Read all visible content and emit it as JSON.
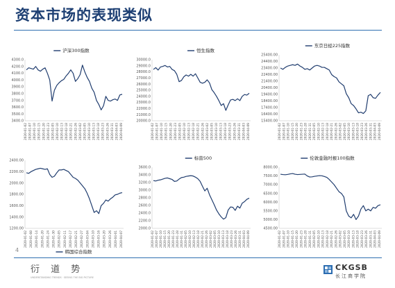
{
  "slide": {
    "title": "资本市场的表现类似",
    "page_number": "4",
    "logo_left": {
      "mark": "衍 道 势",
      "subtitle": "UNDERSTANDING TRENDS · SEEING THE BIG PICTURE"
    },
    "logo_right": {
      "text": "CKGSB",
      "subtitle": "长江商学院"
    }
  },
  "colors": {
    "title": "#1d3f73",
    "rule": "#2e6fb0",
    "series": "#1f3c6e"
  },
  "chart_data": [
    {
      "type": "line",
      "title": "沪深300指数",
      "legend_label": "沪深300指数",
      "legend_position": "top",
      "ylim": [
        3400,
        4300
      ],
      "yticks": [
        "3400.0",
        "3500.0",
        "3600.0",
        "3700.0",
        "3800.0",
        "3900.0",
        "4000.0",
        "4100.0",
        "4200.0",
        "4300.0"
      ],
      "xticks": [
        "2020-01-02",
        "2020-01-07",
        "2020-01-10",
        "2020-01-15",
        "2020-01-20",
        "2020-01-23",
        "2020-02-05",
        "2020-02-10",
        "2020-02-13",
        "2020-02-18",
        "2020-02-21",
        "2020-02-26",
        "2020-03-02",
        "2020-03-05",
        "2020-03-10",
        "2020-03-13",
        "2020-03-18",
        "2020-03-23",
        "2020-03-26",
        "2020-03-31",
        "2020-04-03",
        "2020-04-09"
      ],
      "values": [
        4150,
        4180,
        4170,
        4160,
        4200,
        4150,
        4130,
        4160,
        4180,
        4100,
        4000,
        3690,
        3850,
        3920,
        3960,
        3990,
        4010,
        4060,
        4100,
        4150,
        4100,
        3980,
        4020,
        4080,
        4220,
        4120,
        4040,
        3980,
        3880,
        3820,
        3700,
        3640,
        3560,
        3620,
        3760,
        3700,
        3690,
        3710,
        3720,
        3700,
        3780,
        3790
      ]
    },
    {
      "type": "line",
      "title": "恒生指数",
      "legend_label": "恒生指数",
      "legend_position": "top",
      "ylim": [
        20000,
        30000
      ],
      "yticks": [
        "20000.0",
        "21000.0",
        "22000.0",
        "23000.0",
        "24000.0",
        "25000.0",
        "26000.0",
        "27000.0",
        "28000.0",
        "29000.0",
        "30000.0"
      ],
      "xticks": [
        "2020-01-02",
        "2020-01-07",
        "2020-01-10",
        "2020-01-15",
        "2020-01-20",
        "2020-01-23",
        "2020-02-05",
        "2020-02-10",
        "2020-02-13",
        "2020-02-18",
        "2020-02-21",
        "2020-02-26",
        "2020-03-02",
        "2020-03-05",
        "2020-03-10",
        "2020-03-13",
        "2020-03-18",
        "2020-03-23",
        "2020-03-26",
        "2020-03-31",
        "2020-04-03",
        "2020-04-09"
      ],
      "values": [
        28400,
        28700,
        28300,
        28800,
        28900,
        29050,
        28800,
        28900,
        28400,
        28200,
        27600,
        26400,
        26600,
        27200,
        27500,
        27300,
        27600,
        27300,
        27700,
        27000,
        26300,
        26150,
        26300,
        26700,
        26200,
        25100,
        24600,
        24000,
        23300,
        22500,
        22800,
        21700,
        22600,
        23400,
        23500,
        23300,
        23600,
        23300,
        24000,
        24300,
        24200,
        24500
      ]
    },
    {
      "type": "line",
      "title": "东京日经225指数",
      "legend_label": "东京日经225指数",
      "legend_position": "top",
      "ylim": [
        15400,
        25400
      ],
      "yticks": [
        "15400.00",
        "16400.00",
        "17400.00",
        "18400.00",
        "19400.00",
        "20400.00",
        "21400.00",
        "22400.00",
        "23400.00",
        "24400.00",
        "25400.00"
      ],
      "xticks": [
        "2020-01-02",
        "2020-01-07",
        "2020-01-10",
        "2020-01-15",
        "2020-01-20",
        "2020-01-23",
        "2020-01-28",
        "2020-01-31",
        "2020-02-05",
        "2020-02-10",
        "2020-02-13",
        "2020-02-18",
        "2020-02-21",
        "2020-02-26",
        "2020-03-02",
        "2020-03-05",
        "2020-03-10",
        "2020-03-13",
        "2020-03-18",
        "2020-03-23",
        "2020-03-26",
        "2020-03-31",
        "2020-04-03",
        "2020-04-09"
      ],
      "values": [
        23400,
        23200,
        23500,
        23700,
        23800,
        23900,
        23800,
        24000,
        23700,
        23500,
        23200,
        23300,
        23100,
        23400,
        23700,
        23800,
        23700,
        23500,
        23500,
        23300,
        23100,
        22400,
        22100,
        21900,
        21300,
        21000,
        20700,
        19500,
        18900,
        18000,
        17700,
        17200,
        16600,
        16700,
        16500,
        16900,
        19200,
        19400,
        18900,
        18800,
        19300,
        19700
      ]
    },
    {
      "type": "line",
      "title": "韩国综合指数",
      "legend_label": "韩国综合指数",
      "legend_position": "bottom",
      "ylim": [
        1200,
        2400
      ],
      "yticks": [
        "1200.00",
        "1400.00",
        "1600.00",
        "1800.00",
        "2000.00",
        "2200.00",
        "2400.00"
      ],
      "xticks": [
        "2020-01-02",
        "2020-01-08",
        "2020-01-14",
        "2020-01-20",
        "2020-01-24",
        "2020-01-30",
        "2020-02-05",
        "2020-02-11",
        "2020-02-17",
        "2020-02-21",
        "2020-02-27",
        "2020-03-04",
        "2020-03-10",
        "2020-03-16",
        "2020-03-20",
        "2020-03-26",
        "2020-04-01",
        "2020-04-07"
      ],
      "values": [
        2180,
        2170,
        2200,
        2220,
        2240,
        2250,
        2260,
        2250,
        2240,
        2250,
        2150,
        2100,
        2120,
        2180,
        2230,
        2230,
        2240,
        2220,
        2200,
        2150,
        2100,
        2080,
        2050,
        2000,
        1950,
        1900,
        1820,
        1720,
        1600,
        1480,
        1510,
        1460,
        1600,
        1640,
        1700,
        1680,
        1720,
        1750,
        1790,
        1800,
        1820,
        1830
      ]
    },
    {
      "type": "line",
      "title": "标普500",
      "legend_label": "标普500",
      "legend_position": "top",
      "ylim": [
        2000,
        3600
      ],
      "yticks": [
        "2000.0",
        "2200.0",
        "2400.0",
        "2600.0",
        "2800.0",
        "3000.0",
        "3200.0",
        "3400.0",
        "3600.0"
      ],
      "xticks": [
        "2020-01-02",
        "2020-01-07",
        "2020-01-10",
        "2020-01-15",
        "2020-01-20",
        "2020-01-23",
        "2020-01-28",
        "2020-01-31",
        "2020-02-05",
        "2020-02-10",
        "2020-02-13",
        "2020-02-18",
        "2020-02-21",
        "2020-02-26",
        "2020-03-02",
        "2020-03-05",
        "2020-03-10",
        "2020-03-13",
        "2020-03-18",
        "2020-03-23",
        "2020-03-26",
        "2020-03-31",
        "2020-04-03",
        "2020-04-09"
      ],
      "values": [
        3250,
        3240,
        3260,
        3270,
        3290,
        3310,
        3320,
        3300,
        3280,
        3230,
        3240,
        3290,
        3330,
        3340,
        3360,
        3370,
        3380,
        3370,
        3340,
        3300,
        3230,
        3100,
        2980,
        3050,
        2880,
        2750,
        2620,
        2480,
        2380,
        2300,
        2240,
        2280,
        2480,
        2560,
        2550,
        2470,
        2580,
        2530,
        2660,
        2700,
        2760,
        2790
      ]
    },
    {
      "type": "line",
      "title": "伦敦金融时报100指数",
      "legend_label": "伦敦金融时报100指数",
      "legend_position": "top",
      "ylim": [
        4500,
        8000
      ],
      "yticks": [
        "4500.00",
        "5000.00",
        "5500.00",
        "6000.00",
        "6500.00",
        "7000.00",
        "7500.00",
        "8000.00"
      ],
      "xticks": [
        "2020-01-02",
        "2020-01-07",
        "2020-01-10",
        "2020-01-15",
        "2020-01-20",
        "2020-01-23",
        "2020-01-28",
        "2020-01-31",
        "2020-02-05",
        "2020-02-10",
        "2020-02-13",
        "2020-02-18",
        "2020-02-21",
        "2020-02-26",
        "2020-03-02",
        "2020-03-05",
        "2020-03-10",
        "2020-03-13",
        "2020-03-18",
        "2020-03-23",
        "2020-03-26",
        "2020-03-31",
        "2020-04-03",
        "2020-04-09"
      ],
      "values": [
        7600,
        7580,
        7570,
        7590,
        7620,
        7640,
        7600,
        7580,
        7590,
        7600,
        7610,
        7500,
        7440,
        7450,
        7480,
        7500,
        7520,
        7510,
        7470,
        7420,
        7300,
        7150,
        7000,
        6800,
        6600,
        6500,
        6300,
        5500,
        5200,
        5100,
        5300,
        5000,
        5200,
        5600,
        5800,
        5500,
        5600,
        5500,
        5700,
        5650,
        5800,
        5850
      ]
    }
  ]
}
